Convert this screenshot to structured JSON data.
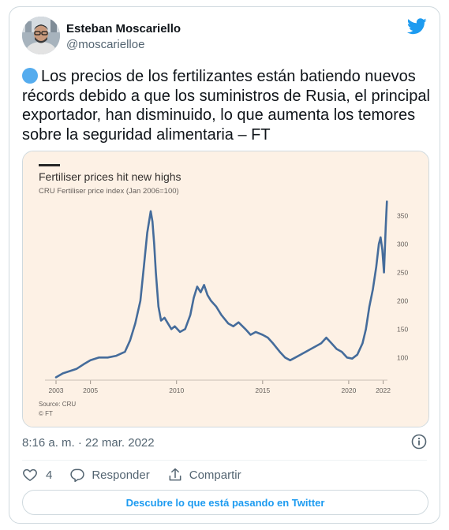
{
  "author": {
    "name": "Esteban Moscariello",
    "handle": "@moscarielloe"
  },
  "tweet": {
    "text": "Los precios de los fertilizantes están batiendo nuevos récords debido a que los suministros de Rusia, el principal exportador, han disminuido, lo que aumenta los temores sobre la seguridad alimentaria – FT",
    "timestamp": "8:16 a. m. · 22 mar. 2022"
  },
  "actions": {
    "like_count": "4",
    "reply_label": "Responder",
    "share_label": "Compartir"
  },
  "cta_label": "Descubre lo que está pasando en Twitter",
  "colors": {
    "brand_blue": "#1d9bf0",
    "emoji_dot": "#55acee",
    "chart_background": "#fdf1e5",
    "chart_line": "#456c9b"
  },
  "icons": [
    "twitter-bird-icon",
    "info-icon",
    "heart-icon",
    "reply-icon",
    "share-icon"
  ],
  "chart_data": {
    "type": "line",
    "title": "Fertiliser prices hit new highs",
    "subtitle": "CRU Fertiliser price index (Jan 2006=100)",
    "source": "Source: CRU",
    "credit": "© FT",
    "x_ticks": [
      "2003",
      "2005",
      "2010",
      "2015",
      "2020",
      "2022"
    ],
    "y_ticks": [
      100,
      150,
      200,
      250,
      300,
      350
    ],
    "xlim": [
      2003,
      2022.25
    ],
    "ylim": [
      60,
      380
    ],
    "grid": false,
    "series": [
      {
        "x": [
          2003.0,
          2003.4,
          2003.8,
          2004.2,
          2004.6,
          2005.0,
          2005.5,
          2006.0,
          2006.5,
          2007.0,
          2007.3,
          2007.6,
          2007.9,
          2008.1,
          2008.3,
          2008.5,
          2008.6,
          2008.7,
          2008.8,
          2008.95,
          2009.1,
          2009.3,
          2009.5,
          2009.7,
          2009.9,
          2010.2,
          2010.5,
          2010.8,
          2011.0,
          2011.2,
          2011.4,
          2011.6,
          2011.8,
          2012.0,
          2012.3,
          2012.6,
          2013.0,
          2013.3,
          2013.6,
          2014.0,
          2014.3,
          2014.6,
          2015.0,
          2015.3,
          2015.6,
          2016.0,
          2016.3,
          2016.6,
          2016.9,
          2017.2,
          2017.5,
          2017.8,
          2018.1,
          2018.4,
          2018.7,
          2019.0,
          2019.3,
          2019.6,
          2019.9,
          2020.2,
          2020.5,
          2020.8,
          2021.0,
          2021.2,
          2021.4,
          2021.6,
          2021.75,
          2021.85,
          2021.95,
          2022.05,
          2022.15,
          2022.22
        ],
        "y": [
          65,
          72,
          76,
          80,
          88,
          95,
          100,
          100,
          103,
          110,
          130,
          160,
          200,
          260,
          320,
          358,
          340,
          300,
          250,
          190,
          165,
          170,
          160,
          150,
          155,
          145,
          150,
          175,
          205,
          225,
          215,
          228,
          210,
          200,
          190,
          175,
          160,
          155,
          162,
          150,
          140,
          145,
          140,
          135,
          125,
          110,
          100,
          95,
          100,
          105,
          110,
          115,
          120,
          125,
          135,
          125,
          115,
          110,
          100,
          98,
          105,
          125,
          150,
          190,
          220,
          260,
          300,
          312,
          290,
          250,
          330,
          375
        ]
      }
    ]
  }
}
